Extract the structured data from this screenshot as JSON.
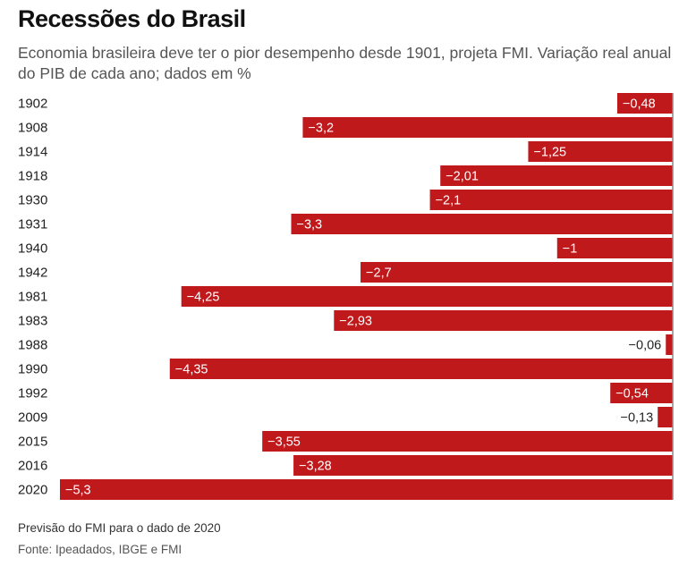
{
  "header": {
    "title": "Recessões do Brasil",
    "subtitle": "Economia brasileira deve ter o pior desempenho desde 1901, projeta FMI. Variação real anual do PIB de cada ano; dados em %"
  },
  "footer": {
    "note": "Previsão do FMI para o dado de 2020",
    "source": "Fonte: Ipeadados, IBGE e FMI"
  },
  "colors": {
    "bar": "#c0191c",
    "axis": "#888888",
    "label_inside": "#ffffff",
    "label_outside": "#222222"
  },
  "chart_data": {
    "type": "bar",
    "orientation": "horizontal",
    "title": "Recessões do Brasil",
    "xlabel": "",
    "ylabel": "",
    "xlim": [
      -5.3,
      0
    ],
    "grid": false,
    "categories": [
      "1902",
      "1908",
      "1914",
      "1918",
      "1930",
      "1931",
      "1940",
      "1942",
      "1981",
      "1983",
      "1988",
      "1990",
      "1992",
      "2009",
      "2015",
      "2016",
      "2020"
    ],
    "values": [
      -0.48,
      -3.2,
      -1.25,
      -2.01,
      -2.1,
      -3.3,
      -1,
      -2.7,
      -4.25,
      -2.93,
      -0.06,
      -4.35,
      -0.54,
      -0.13,
      -3.55,
      -3.28,
      -5.3
    ],
    "labels": [
      "−0,48",
      "−3,2",
      "−1,25",
      "−2,01",
      "−2,1",
      "−3,3",
      "−1",
      "−2,7",
      "−4,25",
      "−2,93",
      "−0,06",
      "−4,35",
      "−0,54",
      "−0,13",
      "−3,55",
      "−3,28",
      "−5,3"
    ]
  }
}
